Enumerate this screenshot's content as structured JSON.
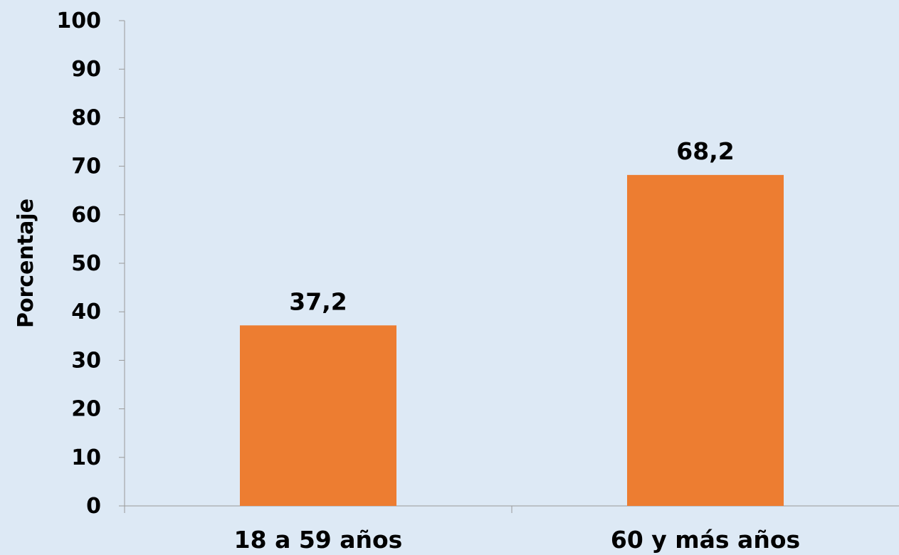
{
  "chart_data": {
    "type": "bar",
    "title": "",
    "xlabel": "",
    "ylabel": "Porcentaje",
    "categories": [
      "18 a 59 años",
      "60 y más años"
    ],
    "values": [
      37.2,
      68.2
    ],
    "value_labels": [
      "37,2",
      "68,2"
    ],
    "ylim": [
      0,
      100
    ],
    "yticks": [
      0,
      10,
      20,
      30,
      40,
      50,
      60,
      70,
      80,
      90,
      100
    ],
    "grid": false,
    "legend": "none",
    "bar_color": "#ed7d31",
    "background_color": "#dde9f5"
  }
}
